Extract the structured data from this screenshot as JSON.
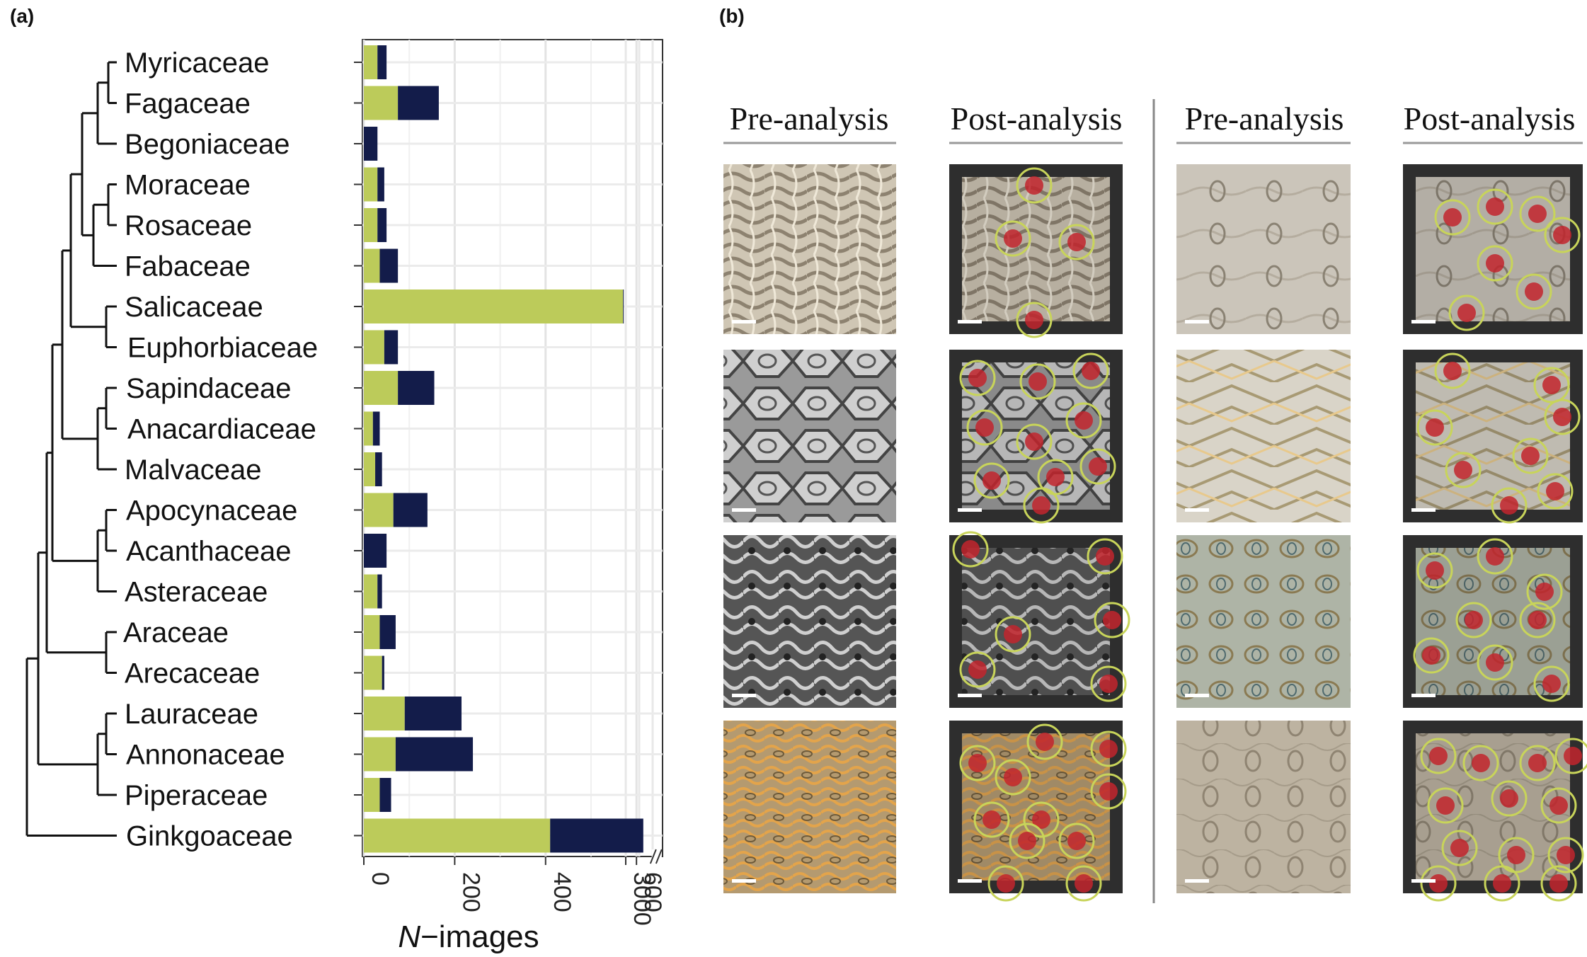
{
  "panels": {
    "a": "(a)",
    "b": "(b)"
  },
  "chart_data": {
    "type": "bar",
    "orientation": "horizontal",
    "stacked": true,
    "categories": [
      "Myricaceae",
      "Fagaceae",
      "Begoniaceae",
      "Moraceae",
      "Rosaceae",
      "Fabaceae",
      "Salicaceae",
      "Euphorbiaceae",
      "Sapindaceae",
      "Anacardiaceae",
      "Malvaceae",
      "Apocynaceae",
      "Acanthaceae",
      "Asteraceae",
      "Araceae",
      "Arecaceae",
      "Lauraceae",
      "Annonaceae",
      "Piperaceae",
      "Ginkgoaceae"
    ],
    "series": [
      {
        "color": "#bccb5a",
        "values": [
          30,
          75,
          0,
          30,
          30,
          35,
          3200,
          45,
          75,
          20,
          25,
          65,
          0,
          30,
          35,
          40,
          90,
          70,
          35,
          410
        ]
      },
      {
        "color": "#131c4a",
        "values": [
          20,
          90,
          30,
          15,
          20,
          40,
          200,
          30,
          80,
          15,
          15,
          75,
          50,
          10,
          35,
          5,
          125,
          170,
          25,
          205
        ]
      }
    ],
    "xlabel_italic": "N",
    "xlabel_rest": "−images",
    "xticks": [
      "0",
      "200",
      "400",
      "600",
      "3000"
    ],
    "axis_break_after": 640,
    "grid": true
  },
  "image_grid": {
    "headers": [
      "Pre-analysis",
      "Post-analysis",
      "Pre-analysis",
      "Post-analysis"
    ]
  }
}
